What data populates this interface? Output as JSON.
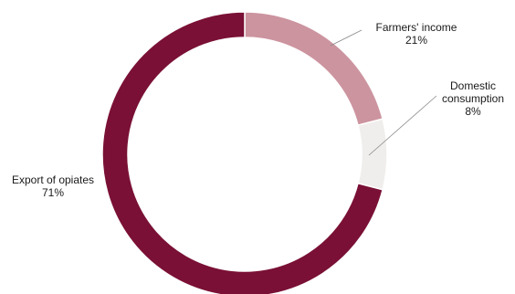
{
  "chart_data": {
    "type": "pie",
    "donut": true,
    "slices": [
      {
        "label": "Farmers' income",
        "value": 21,
        "value_label": "21%",
        "color": "#cc949f"
      },
      {
        "label": "Domestic consumption",
        "label_lines": [
          "Domestic",
          "consumption"
        ],
        "value": 8,
        "value_label": "8%",
        "color": "#f0eeec"
      },
      {
        "label": "Export of opiates",
        "value": 71,
        "value_label": "71%",
        "color": "#7a1035"
      }
    ],
    "start": "12 o'clock",
    "direction": "clockwise",
    "legend": "none"
  }
}
